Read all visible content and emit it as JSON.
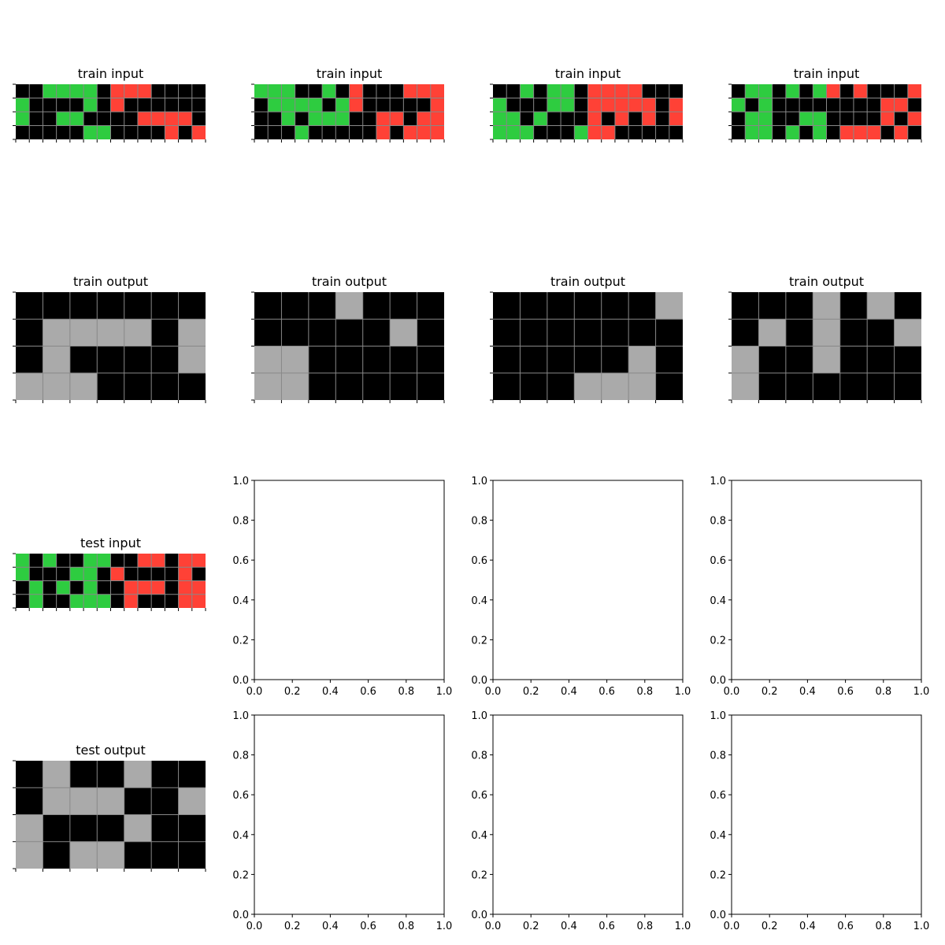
{
  "colors": {
    "0": "#000000",
    "2": "#FF4136",
    "3": "#2ECC40",
    "5": "#AAAAAA",
    "gridline": "#888888",
    "axes": "#000000",
    "background": "#FFFFFF"
  },
  "panels": [
    {
      "title": "train input",
      "grid": [
        [
          0,
          0,
          3,
          3,
          3,
          3,
          0,
          2,
          2,
          2,
          0,
          0,
          0,
          0
        ],
        [
          3,
          0,
          0,
          0,
          0,
          3,
          0,
          2,
          0,
          0,
          0,
          0,
          0,
          0
        ],
        [
          3,
          0,
          0,
          3,
          3,
          0,
          0,
          0,
          0,
          2,
          2,
          2,
          2,
          0
        ],
        [
          0,
          0,
          0,
          0,
          0,
          3,
          3,
          0,
          0,
          0,
          0,
          2,
          0,
          2
        ]
      ]
    },
    {
      "title": "train input",
      "grid": [
        [
          3,
          3,
          3,
          0,
          0,
          3,
          0,
          2,
          0,
          0,
          0,
          2,
          2,
          2
        ],
        [
          0,
          3,
          3,
          3,
          3,
          0,
          3,
          2,
          0,
          0,
          0,
          0,
          0,
          2
        ],
        [
          0,
          0,
          3,
          0,
          3,
          3,
          3,
          0,
          0,
          2,
          2,
          0,
          2,
          2
        ],
        [
          0,
          0,
          0,
          3,
          0,
          0,
          0,
          0,
          0,
          2,
          0,
          2,
          2,
          2
        ]
      ]
    },
    {
      "title": "train input",
      "grid": [
        [
          0,
          0,
          3,
          0,
          3,
          3,
          0,
          2,
          2,
          2,
          2,
          0,
          0,
          0
        ],
        [
          3,
          0,
          0,
          0,
          3,
          3,
          0,
          2,
          2,
          2,
          2,
          2,
          0,
          2
        ],
        [
          3,
          3,
          0,
          3,
          0,
          0,
          0,
          2,
          0,
          2,
          0,
          2,
          0,
          2
        ],
        [
          3,
          3,
          3,
          0,
          0,
          0,
          3,
          2,
          2,
          0,
          0,
          0,
          0,
          0
        ]
      ]
    },
    {
      "title": "train input",
      "grid": [
        [
          0,
          3,
          3,
          0,
          3,
          0,
          3,
          2,
          0,
          2,
          0,
          0,
          0,
          2
        ],
        [
          3,
          0,
          3,
          0,
          0,
          0,
          0,
          0,
          0,
          0,
          0,
          2,
          2,
          0
        ],
        [
          0,
          3,
          3,
          0,
          0,
          3,
          3,
          0,
          0,
          0,
          0,
          2,
          0,
          2
        ],
        [
          0,
          3,
          3,
          0,
          3,
          0,
          3,
          0,
          2,
          2,
          2,
          0,
          2,
          0
        ]
      ]
    },
    {
      "title": "train output",
      "grid": [
        [
          0,
          0,
          0,
          0,
          0,
          0,
          0
        ],
        [
          0,
          5,
          5,
          5,
          5,
          0,
          5
        ],
        [
          0,
          5,
          0,
          0,
          0,
          0,
          5
        ],
        [
          5,
          5,
          5,
          0,
          0,
          0,
          0
        ]
      ]
    },
    {
      "title": "train output",
      "grid": [
        [
          0,
          0,
          0,
          5,
          0,
          0,
          0
        ],
        [
          0,
          0,
          0,
          0,
          0,
          5,
          0
        ],
        [
          5,
          5,
          0,
          0,
          0,
          0,
          0
        ],
        [
          5,
          5,
          0,
          0,
          0,
          0,
          0
        ]
      ]
    },
    {
      "title": "train output",
      "grid": [
        [
          0,
          0,
          0,
          0,
          0,
          0,
          5
        ],
        [
          0,
          0,
          0,
          0,
          0,
          0,
          0
        ],
        [
          0,
          0,
          0,
          0,
          0,
          5,
          0
        ],
        [
          0,
          0,
          0,
          5,
          5,
          5,
          0
        ]
      ]
    },
    {
      "title": "train output",
      "grid": [
        [
          0,
          0,
          0,
          5,
          0,
          5,
          0
        ],
        [
          0,
          5,
          0,
          5,
          0,
          0,
          5
        ],
        [
          5,
          0,
          0,
          5,
          0,
          0,
          0
        ],
        [
          5,
          0,
          0,
          0,
          0,
          0,
          0
        ]
      ]
    },
    {
      "title": "test input",
      "grid": [
        [
          3,
          0,
          3,
          0,
          0,
          3,
          3,
          0,
          0,
          2,
          2,
          0,
          2,
          2
        ],
        [
          3,
          0,
          0,
          0,
          3,
          3,
          0,
          2,
          0,
          0,
          0,
          0,
          2,
          0
        ],
        [
          0,
          3,
          0,
          3,
          0,
          3,
          0,
          0,
          2,
          2,
          2,
          0,
          2,
          2
        ],
        [
          0,
          3,
          0,
          0,
          3,
          3,
          3,
          0,
          2,
          0,
          0,
          0,
          2,
          2
        ]
      ]
    },
    {
      "title": "test output",
      "grid": [
        [
          0,
          5,
          0,
          0,
          5,
          0,
          0
        ],
        [
          0,
          5,
          5,
          5,
          0,
          0,
          5
        ],
        [
          5,
          0,
          0,
          0,
          5,
          0,
          0
        ],
        [
          5,
          0,
          5,
          5,
          0,
          0,
          0
        ]
      ]
    }
  ],
  "empty_axes": {
    "tick_labels": [
      "0.0",
      "0.2",
      "0.4",
      "0.6",
      "0.8",
      "1.0"
    ],
    "count": 6
  }
}
